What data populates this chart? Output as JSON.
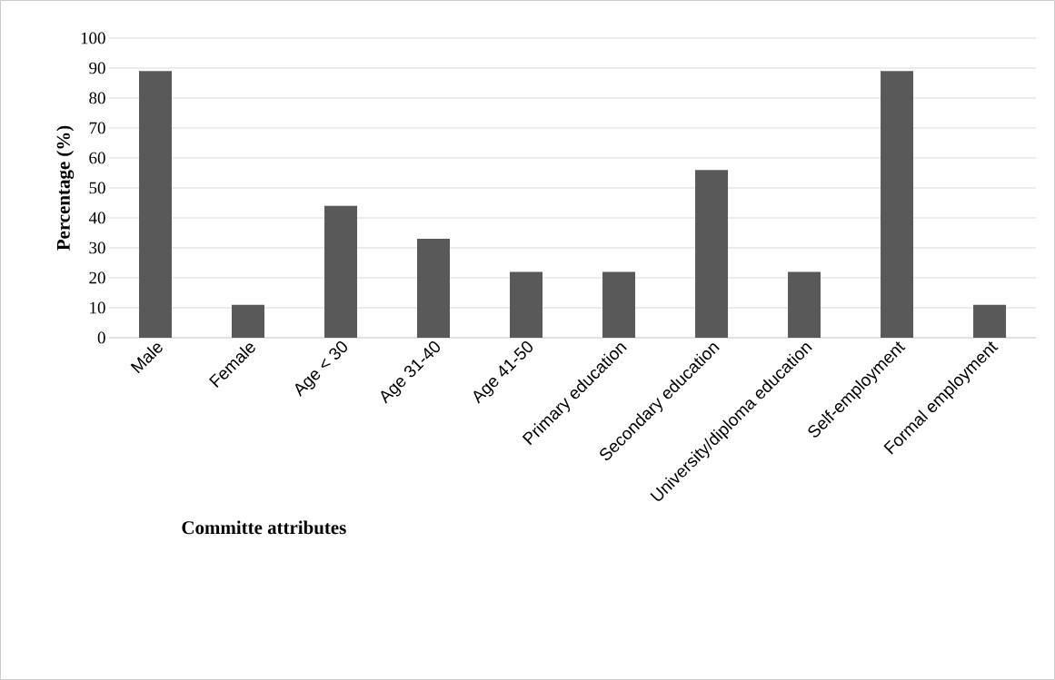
{
  "chart_data": {
    "type": "bar",
    "xlabel": "Committe attributes",
    "ylabel": "Percentage (%)",
    "categories": [
      "Male",
      "Female",
      "Age < 30",
      "Age 31-40",
      "Age 41-50",
      "Primary education",
      "Secondary education",
      "University/diploma education",
      "Self-employment",
      "Formal employment"
    ],
    "values": [
      89,
      11,
      44,
      33,
      22,
      22,
      56,
      22,
      89,
      11
    ],
    "color": "#595959",
    "ylim": [
      0,
      100
    ],
    "yticks": [
      0,
      10,
      20,
      30,
      40,
      50,
      60,
      70,
      80,
      90,
      100
    ],
    "grid": "y"
  }
}
